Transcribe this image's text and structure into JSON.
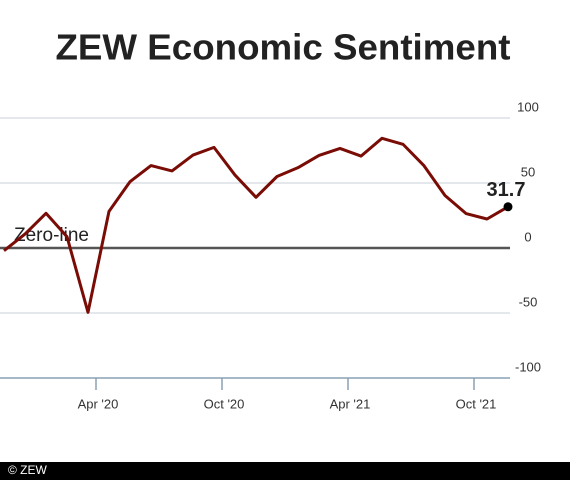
{
  "chart_data": {
    "type": "line",
    "title": "ZEW Economic Sentiment",
    "annotation": "Zero-line",
    "source": "© ZEW",
    "categories": [
      null,
      null,
      null,
      null,
      null,
      "Apr '20",
      null,
      null,
      null,
      null,
      null,
      "Oct '20",
      null,
      null,
      null,
      null,
      null,
      "Apr '21",
      null,
      null,
      null,
      null,
      null,
      "Oct '21",
      null
    ],
    "series": [
      {
        "name": "ZEW Economic Sentiment",
        "color": "#7a0c06",
        "values": [
          -2.1,
          10.7,
          26.7,
          8.7,
          -49.5,
          28.2,
          51,
          63.4,
          59.3,
          71.5,
          77.4,
          56.1,
          39,
          55,
          61.8,
          71.2,
          76.6,
          70.7,
          84.4,
          79.8,
          63.3,
          40.4,
          26.5,
          22.3,
          31.7
        ]
      }
    ],
    "ylim": [
      -100,
      100
    ],
    "yticks": [
      100,
      50,
      0,
      -50,
      -100
    ],
    "grid": true
  }
}
